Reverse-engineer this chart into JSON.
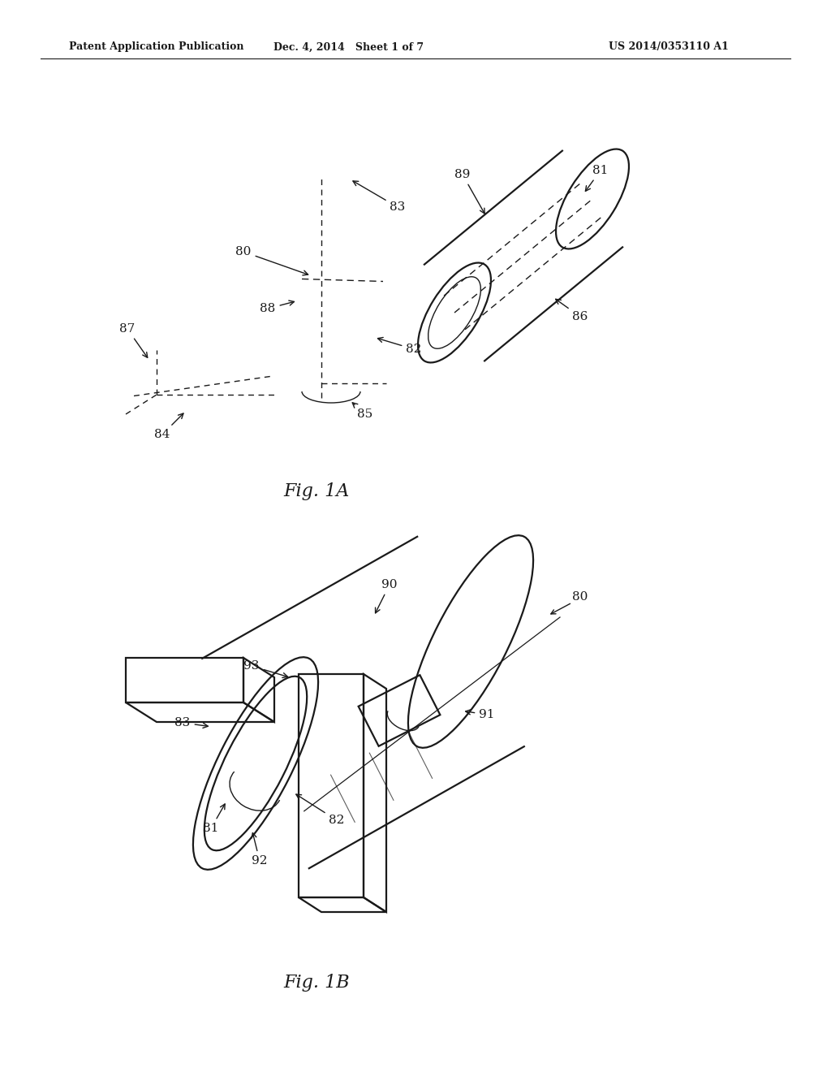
{
  "background_color": "#ffffff",
  "line_color": "#1a1a1a",
  "text_color": "#1a1a1a",
  "header_left": "Patent Application Publication",
  "header_center": "Dec. 4, 2014   Sheet 1 of 7",
  "header_right": "US 2014/0353110 A1",
  "fig1a_label": "Fig. 1A",
  "fig1b_label": "Fig. 1B"
}
